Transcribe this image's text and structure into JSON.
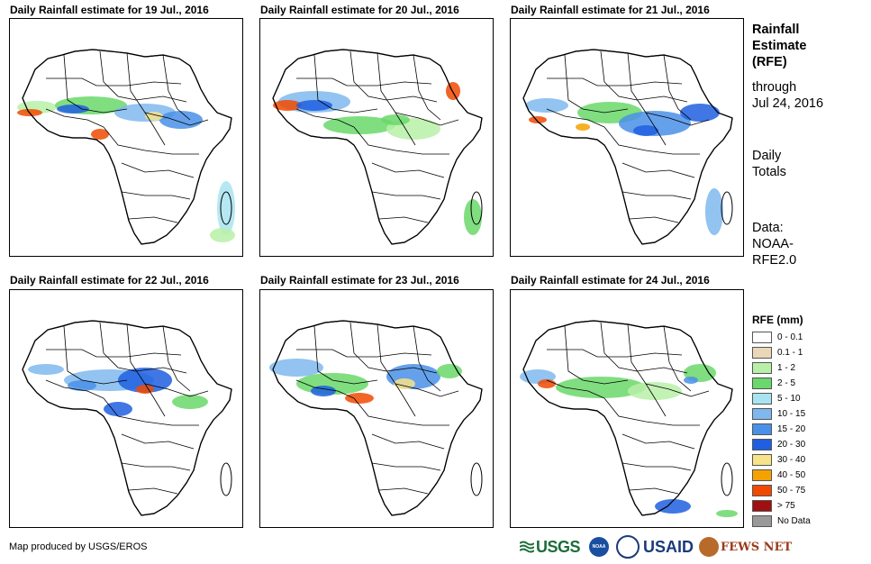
{
  "panels": [
    {
      "title": "Daily Rainfall estimate for 19 Jul., 2016",
      "rain_pattern": 1
    },
    {
      "title": "Daily Rainfall estimate for 20 Jul., 2016",
      "rain_pattern": 2
    },
    {
      "title": "Daily Rainfall estimate for 21 Jul., 2016",
      "rain_pattern": 3
    },
    {
      "title": "Daily Rainfall estimate for 22 Jul., 2016",
      "rain_pattern": 4
    },
    {
      "title": "Daily Rainfall estimate for 23 Jul., 2016",
      "rain_pattern": 5
    },
    {
      "title": "Daily Rainfall estimate for 24 Jul., 2016",
      "rain_pattern": 6
    }
  ],
  "sidebar": {
    "title_lines": [
      "Rainfall",
      "Estimate",
      "(RFE)"
    ],
    "through_lines": [
      "through",
      "Jul 24, 2016"
    ],
    "totals_lines": [
      "Daily",
      "Totals"
    ],
    "source_lines": [
      "Data:",
      "NOAA-",
      "RFE2.0"
    ]
  },
  "legend": {
    "title": "RFE (mm)",
    "items": [
      {
        "label": "0 - 0.1",
        "color": "#ffffff"
      },
      {
        "label": "0.1 - 1",
        "color": "#ead7b8"
      },
      {
        "label": "1 - 2",
        "color": "#b8f0a8"
      },
      {
        "label": "2 - 5",
        "color": "#6ad86a"
      },
      {
        "label": "5 - 10",
        "color": "#a8e4f0"
      },
      {
        "label": "10 - 15",
        "color": "#7fb8ee"
      },
      {
        "label": "15 - 20",
        "color": "#4a90e8"
      },
      {
        "label": "20 - 30",
        "color": "#1f5fe0"
      },
      {
        "label": "30 - 40",
        "color": "#f8e28a"
      },
      {
        "label": "40 - 50",
        "color": "#f5a200"
      },
      {
        "label": "50 - 75",
        "color": "#f04a00"
      },
      {
        "label": "> 75",
        "color": "#a01010"
      },
      {
        "label": "No Data",
        "color": "#999999"
      }
    ]
  },
  "footer": {
    "credit": "Map produced by USGS/EROS",
    "logos": {
      "usgs": "USGS",
      "noaa": "NOAA",
      "usaid": "USAID",
      "fews": "FEWS NET"
    }
  }
}
